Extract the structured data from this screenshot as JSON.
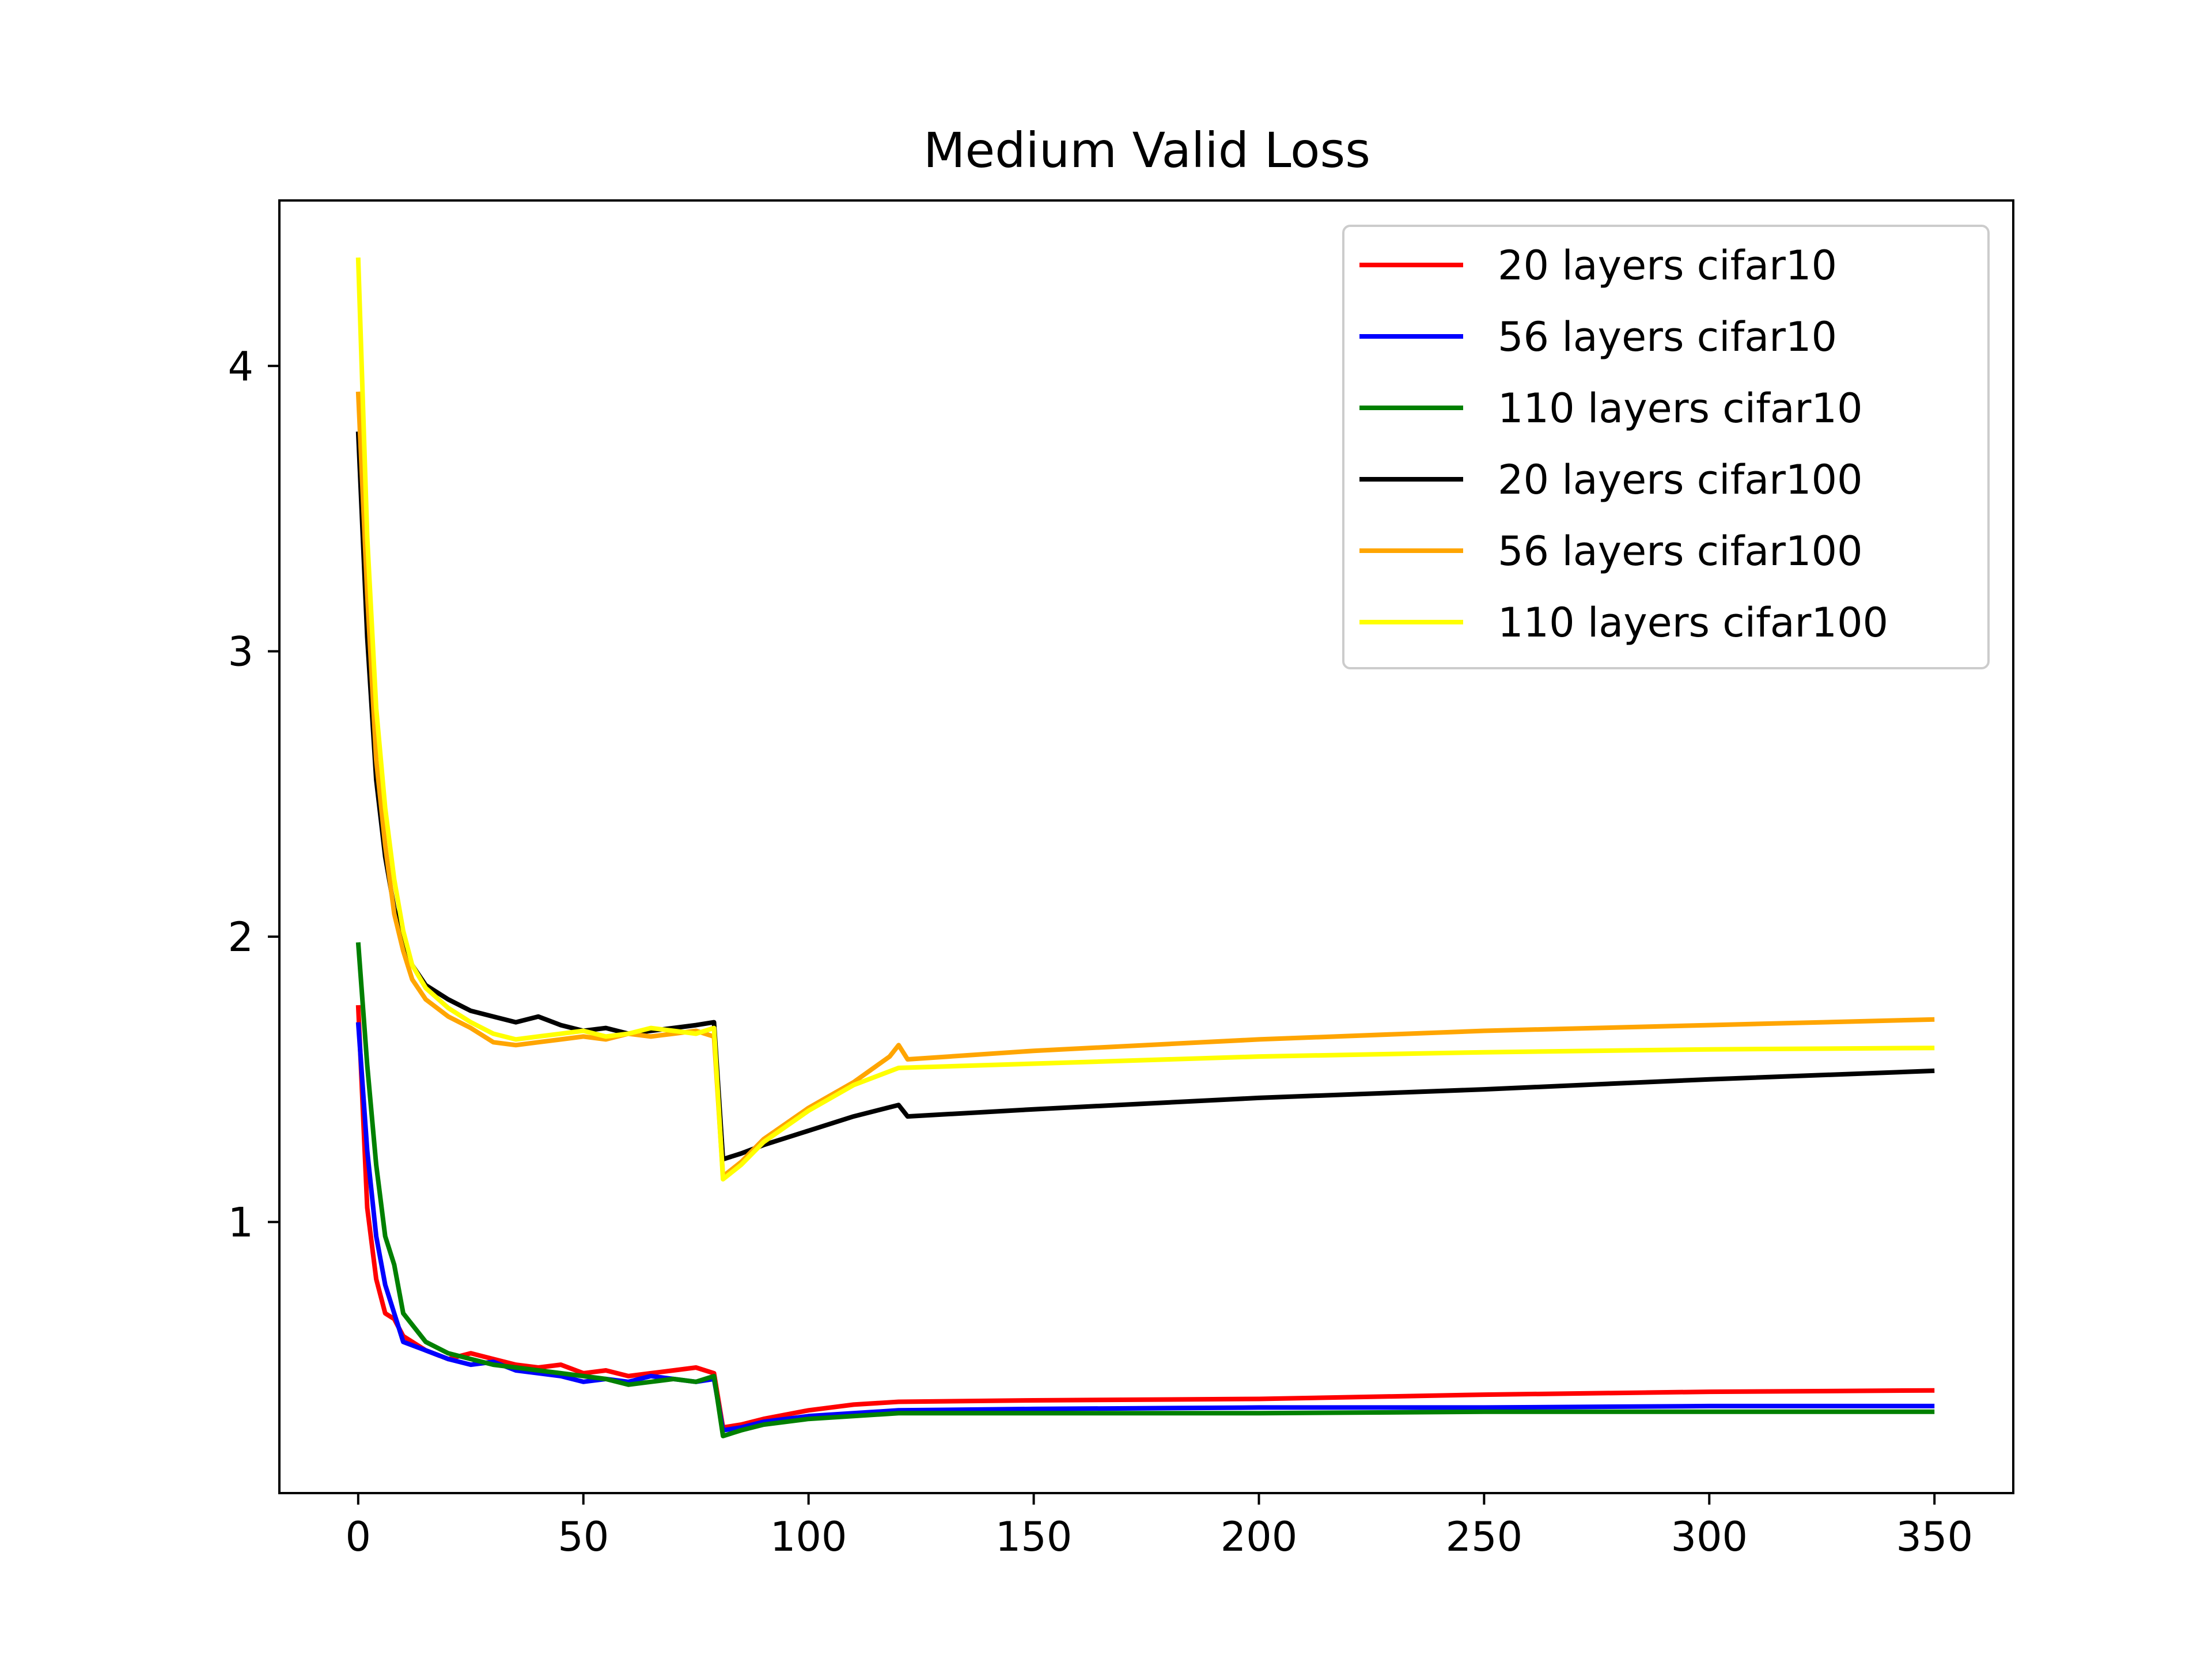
{
  "chart_data": {
    "type": "line",
    "title": "Medium Valid Loss",
    "xlabel": "",
    "ylabel": "",
    "xlim": [
      -17.5,
      367.5
    ],
    "ylim": [
      0.05,
      4.58
    ],
    "xticks": [
      0,
      50,
      100,
      150,
      200,
      250,
      300,
      350
    ],
    "yticks": [
      1,
      2,
      3,
      4
    ],
    "grid": false,
    "legend_position": "top-right",
    "series": [
      {
        "name": "20 layers cifar10",
        "color": "#ff0000",
        "points": [
          [
            0,
            1.76
          ],
          [
            2,
            1.05
          ],
          [
            4,
            0.8
          ],
          [
            6,
            0.68
          ],
          [
            8,
            0.66
          ],
          [
            10,
            0.6
          ],
          [
            15,
            0.55
          ],
          [
            20,
            0.52
          ],
          [
            25,
            0.54
          ],
          [
            30,
            0.52
          ],
          [
            35,
            0.5
          ],
          [
            40,
            0.49
          ],
          [
            45,
            0.5
          ],
          [
            50,
            0.47
          ],
          [
            55,
            0.48
          ],
          [
            60,
            0.46
          ],
          [
            65,
            0.47
          ],
          [
            70,
            0.48
          ],
          [
            75,
            0.49
          ],
          [
            79,
            0.47
          ],
          [
            81,
            0.28
          ],
          [
            85,
            0.29
          ],
          [
            90,
            0.31
          ],
          [
            100,
            0.34
          ],
          [
            110,
            0.36
          ],
          [
            120,
            0.37
          ],
          [
            150,
            0.375
          ],
          [
            200,
            0.38
          ],
          [
            250,
            0.395
          ],
          [
            300,
            0.405
          ],
          [
            350,
            0.41
          ]
        ]
      },
      {
        "name": "56 layers cifar10",
        "color": "#0000ff",
        "points": [
          [
            0,
            1.7
          ],
          [
            2,
            1.25
          ],
          [
            4,
            0.95
          ],
          [
            6,
            0.78
          ],
          [
            8,
            0.68
          ],
          [
            10,
            0.58
          ],
          [
            15,
            0.55
          ],
          [
            20,
            0.52
          ],
          [
            25,
            0.5
          ],
          [
            30,
            0.51
          ],
          [
            35,
            0.48
          ],
          [
            40,
            0.47
          ],
          [
            45,
            0.46
          ],
          [
            50,
            0.44
          ],
          [
            55,
            0.45
          ],
          [
            60,
            0.44
          ],
          [
            65,
            0.46
          ],
          [
            70,
            0.45
          ],
          [
            75,
            0.44
          ],
          [
            79,
            0.45
          ],
          [
            81,
            0.27
          ],
          [
            85,
            0.28
          ],
          [
            90,
            0.3
          ],
          [
            100,
            0.32
          ],
          [
            110,
            0.33
          ],
          [
            120,
            0.34
          ],
          [
            150,
            0.345
          ],
          [
            200,
            0.35
          ],
          [
            250,
            0.35
          ],
          [
            300,
            0.355
          ],
          [
            350,
            0.355
          ]
        ]
      },
      {
        "name": "110 layers cifar10",
        "color": "#008000",
        "points": [
          [
            0,
            1.98
          ],
          [
            2,
            1.55
          ],
          [
            4,
            1.2
          ],
          [
            6,
            0.95
          ],
          [
            8,
            0.85
          ],
          [
            10,
            0.68
          ],
          [
            15,
            0.58
          ],
          [
            20,
            0.54
          ],
          [
            25,
            0.52
          ],
          [
            30,
            0.5
          ],
          [
            35,
            0.49
          ],
          [
            40,
            0.48
          ],
          [
            45,
            0.47
          ],
          [
            50,
            0.46
          ],
          [
            55,
            0.45
          ],
          [
            60,
            0.43
          ],
          [
            65,
            0.44
          ],
          [
            70,
            0.45
          ],
          [
            75,
            0.44
          ],
          [
            79,
            0.46
          ],
          [
            81,
            0.25
          ],
          [
            85,
            0.27
          ],
          [
            90,
            0.29
          ],
          [
            100,
            0.31
          ],
          [
            110,
            0.32
          ],
          [
            120,
            0.33
          ],
          [
            150,
            0.33
          ],
          [
            200,
            0.33
          ],
          [
            250,
            0.335
          ],
          [
            300,
            0.335
          ],
          [
            350,
            0.335
          ]
        ]
      },
      {
        "name": "20 layers cifar100",
        "color": "#000000",
        "points": [
          [
            0,
            3.77
          ],
          [
            2,
            3.05
          ],
          [
            4,
            2.55
          ],
          [
            6,
            2.28
          ],
          [
            8,
            2.1
          ],
          [
            10,
            1.98
          ],
          [
            12,
            1.9
          ],
          [
            15,
            1.83
          ],
          [
            20,
            1.78
          ],
          [
            25,
            1.74
          ],
          [
            30,
            1.72
          ],
          [
            35,
            1.7
          ],
          [
            40,
            1.72
          ],
          [
            45,
            1.69
          ],
          [
            50,
            1.67
          ],
          [
            55,
            1.68
          ],
          [
            60,
            1.66
          ],
          [
            65,
            1.67
          ],
          [
            70,
            1.68
          ],
          [
            75,
            1.69
          ],
          [
            79,
            1.7
          ],
          [
            81,
            1.22
          ],
          [
            85,
            1.24
          ],
          [
            90,
            1.27
          ],
          [
            100,
            1.32
          ],
          [
            110,
            1.37
          ],
          [
            120,
            1.41
          ],
          [
            122,
            1.37
          ],
          [
            150,
            1.395
          ],
          [
            200,
            1.435
          ],
          [
            250,
            1.465
          ],
          [
            300,
            1.5
          ],
          [
            350,
            1.53
          ]
        ]
      },
      {
        "name": "56 layers cifar100",
        "color": "#ffa500",
        "points": [
          [
            0,
            3.91
          ],
          [
            2,
            3.2
          ],
          [
            4,
            2.62
          ],
          [
            6,
            2.32
          ],
          [
            8,
            2.08
          ],
          [
            10,
            1.95
          ],
          [
            12,
            1.85
          ],
          [
            15,
            1.78
          ],
          [
            20,
            1.72
          ],
          [
            25,
            1.68
          ],
          [
            30,
            1.63
          ],
          [
            35,
            1.62
          ],
          [
            40,
            1.63
          ],
          [
            45,
            1.64
          ],
          [
            50,
            1.65
          ],
          [
            55,
            1.64
          ],
          [
            60,
            1.66
          ],
          [
            65,
            1.65
          ],
          [
            70,
            1.66
          ],
          [
            75,
            1.67
          ],
          [
            79,
            1.65
          ],
          [
            81,
            1.16
          ],
          [
            85,
            1.21
          ],
          [
            90,
            1.29
          ],
          [
            100,
            1.4
          ],
          [
            110,
            1.49
          ],
          [
            118,
            1.58
          ],
          [
            120,
            1.62
          ],
          [
            122,
            1.57
          ],
          [
            150,
            1.6
          ],
          [
            200,
            1.64
          ],
          [
            250,
            1.67
          ],
          [
            300,
            1.69
          ],
          [
            350,
            1.71
          ]
        ]
      },
      {
        "name": "110 layers cifar100",
        "color": "#ffff00",
        "points": [
          [
            0,
            4.38
          ],
          [
            2,
            3.4
          ],
          [
            4,
            2.8
          ],
          [
            6,
            2.45
          ],
          [
            8,
            2.2
          ],
          [
            10,
            2.02
          ],
          [
            12,
            1.9
          ],
          [
            15,
            1.82
          ],
          [
            20,
            1.75
          ],
          [
            25,
            1.7
          ],
          [
            30,
            1.66
          ],
          [
            35,
            1.64
          ],
          [
            40,
            1.65
          ],
          [
            45,
            1.66
          ],
          [
            50,
            1.67
          ],
          [
            55,
            1.65
          ],
          [
            60,
            1.66
          ],
          [
            65,
            1.68
          ],
          [
            70,
            1.67
          ],
          [
            75,
            1.66
          ],
          [
            79,
            1.68
          ],
          [
            81,
            1.15
          ],
          [
            85,
            1.2
          ],
          [
            90,
            1.28
          ],
          [
            100,
            1.39
          ],
          [
            110,
            1.48
          ],
          [
            120,
            1.54
          ],
          [
            150,
            1.555
          ],
          [
            200,
            1.58
          ],
          [
            250,
            1.595
          ],
          [
            300,
            1.605
          ],
          [
            350,
            1.61
          ]
        ]
      }
    ]
  }
}
